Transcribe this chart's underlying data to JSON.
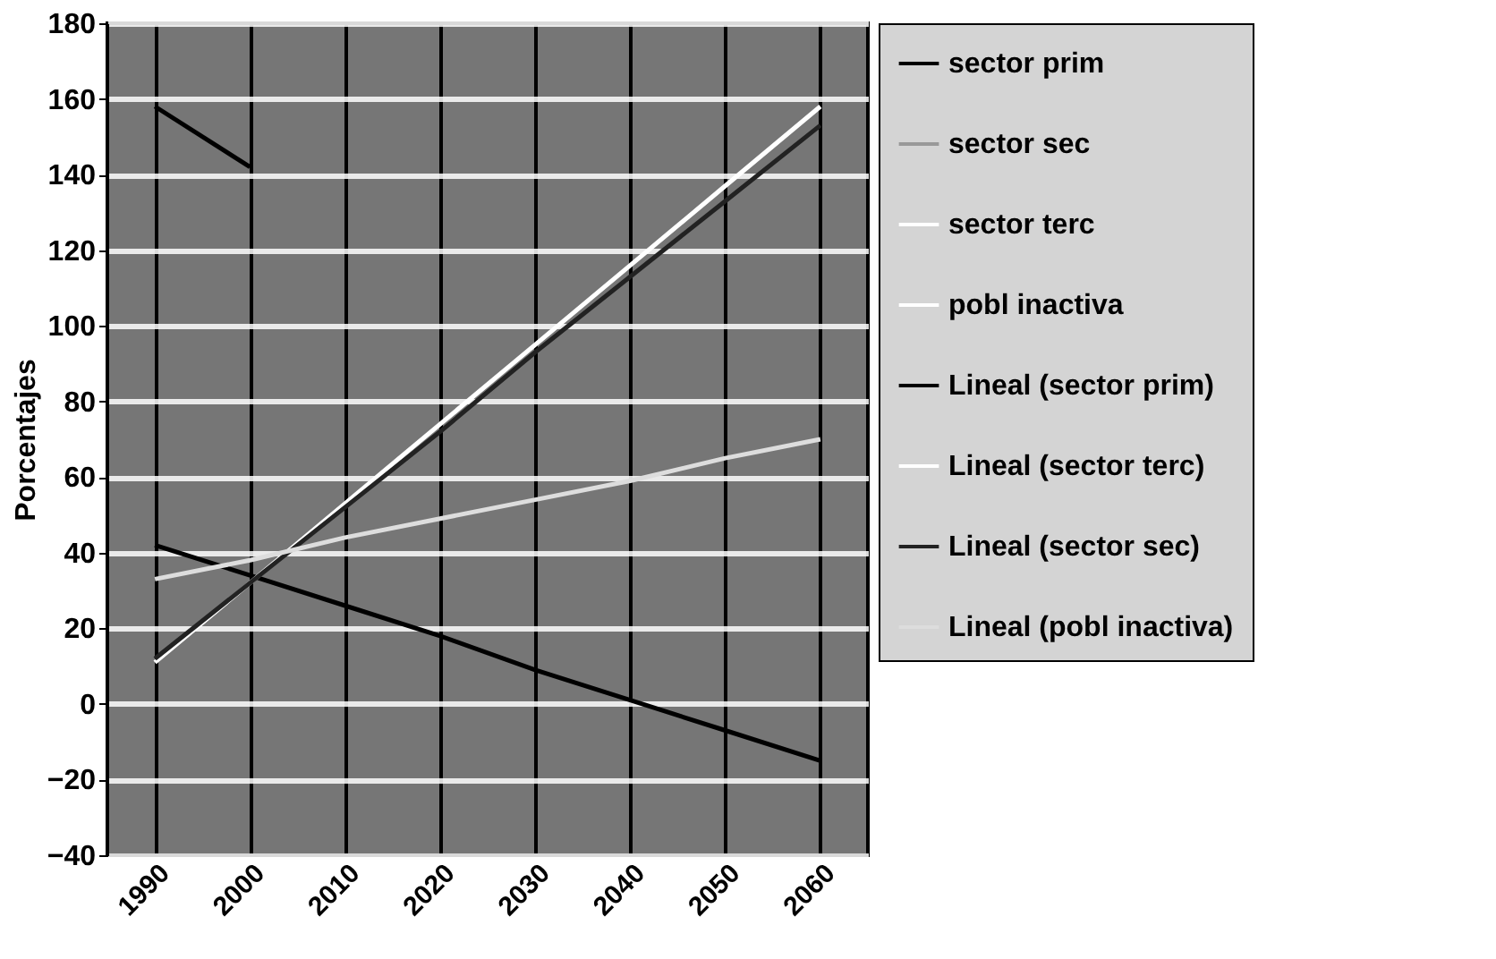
{
  "chart_data": {
    "type": "line",
    "ylabel": "Porcentajes",
    "categories": [
      "1990",
      "2000",
      "2010",
      "2020",
      "2030",
      "2040",
      "2050",
      "2060"
    ],
    "ylim": [
      -40,
      180
    ],
    "yticks": [
      -40,
      -20,
      0,
      20,
      40,
      60,
      80,
      100,
      120,
      140,
      160,
      180
    ],
    "grid": true,
    "legend": "right",
    "line_style": "solid",
    "marker": "none",
    "series": [
      {
        "name": "sector prim",
        "color": "#000000",
        "values": [
          158,
          142,
          null,
          null,
          null,
          null,
          null,
          null
        ]
      },
      {
        "name": "sector sec",
        "color": "#999999",
        "values": [
          null,
          null,
          null,
          null,
          null,
          null,
          null,
          null
        ]
      },
      {
        "name": "sector terc",
        "color": "#ffffff",
        "values": [
          null,
          null,
          null,
          null,
          null,
          null,
          null,
          null
        ]
      },
      {
        "name": "pobl inactiva",
        "color": "#ffffff",
        "values": [
          null,
          null,
          null,
          null,
          null,
          null,
          null,
          null
        ]
      },
      {
        "name": "Lineal (sector prim)",
        "color": "#000000",
        "values": [
          42,
          34,
          26,
          18,
          9,
          1,
          -7,
          -15
        ]
      },
      {
        "name": "Lineal (sector terc)",
        "color": "#ffffff",
        "values": [
          11,
          32,
          53,
          74,
          95,
          116,
          137,
          158
        ]
      },
      {
        "name": "Lineal (sector sec)",
        "color": "#222222",
        "values": [
          12,
          32,
          52,
          72,
          93,
          113,
          133,
          153
        ]
      },
      {
        "name": "Lineal (pobl inactiva)",
        "color": "#dddddd",
        "values": [
          33,
          38,
          44,
          49,
          54,
          59,
          65,
          70
        ]
      }
    ]
  }
}
